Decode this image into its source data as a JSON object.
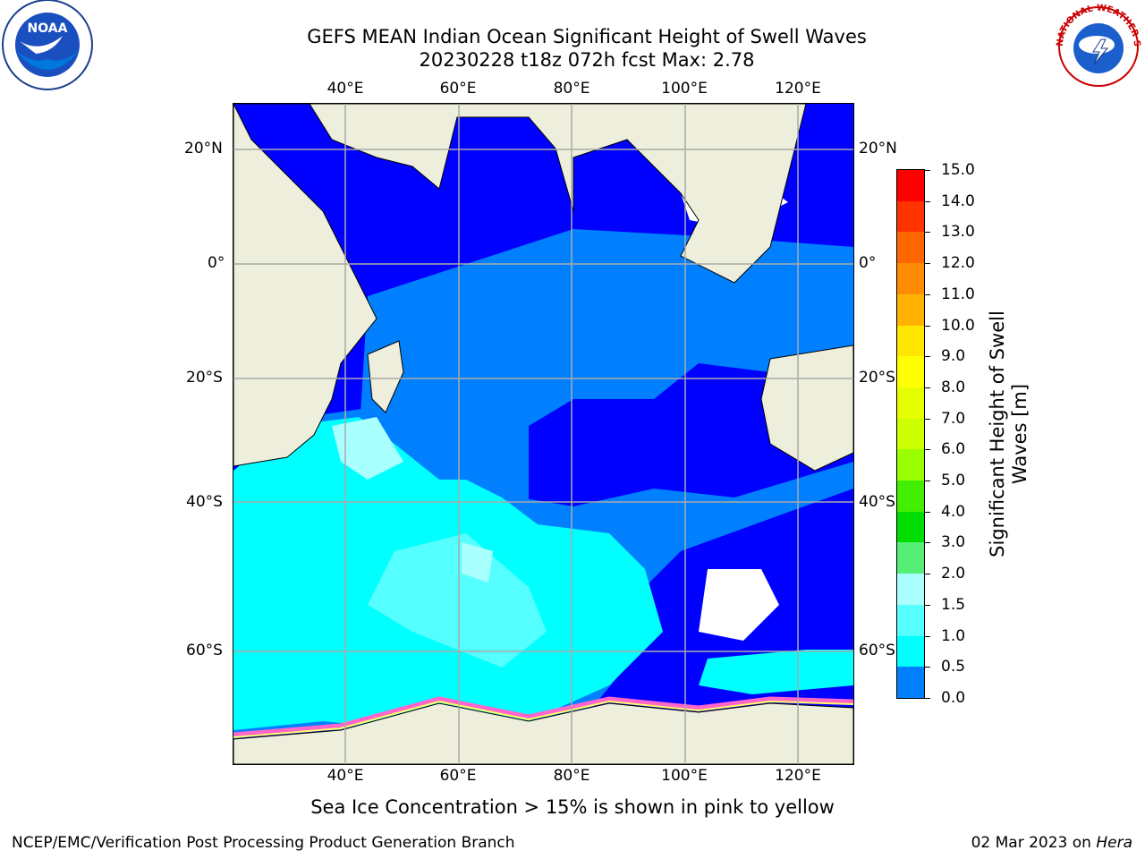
{
  "header": {
    "title_line1": "GEFS MEAN Indian Ocean Significant Height of Swell Waves",
    "title_line2": "20230228 t18z 072h fcst   Max: 2.78"
  },
  "logos": {
    "left": {
      "icon": "noaa-logo",
      "text": "NOAA"
    },
    "right": {
      "icon": "national-weather-service-logo",
      "text": "NATIONAL WEATHER SERVICE"
    }
  },
  "map": {
    "lon_labels": [
      "40°E",
      "60°E",
      "80°E",
      "100°E",
      "120°E"
    ],
    "lat_labels": [
      "20°N",
      "0°",
      "20°S",
      "40°S",
      "60°S"
    ],
    "colors": {
      "land": "#eeeedd",
      "ice_pink": "#ff66cc",
      "ice_yellow": "#ffff66",
      "no_data": "#ffffff",
      "grid": "#aaaaaa"
    }
  },
  "colorbar": {
    "title_line1": "Significant Height of Swell",
    "title_line2": "Waves [m]",
    "labels": [
      "15.0",
      "14.0",
      "13.0",
      "12.0",
      "11.0",
      "10.0",
      "9.0",
      "8.0",
      "7.0",
      "6.0",
      "5.0",
      "4.0",
      "3.0",
      "2.0",
      "1.5",
      "1.0",
      "0.5",
      "0.0"
    ],
    "colors": [
      "#ff0000",
      "#ff3300",
      "#ff6600",
      "#ff8c00",
      "#ffb300",
      "#ffe600",
      "#ffff00",
      "#e6ff00",
      "#ccff00",
      "#99ff00",
      "#44ee00",
      "#00dd00",
      "#55ee77",
      "#aaffff",
      "#55ffff",
      "#00ffff",
      "#0080ff",
      "#0000ff"
    ]
  },
  "caption": "Sea Ice Concentration > 15% is shown in pink to yellow",
  "footer": {
    "left": "NCEP/EMC/Verification Post Processing Product Generation Branch",
    "right_date": "02 Mar 2023 on ",
    "right_host": "Hera"
  }
}
